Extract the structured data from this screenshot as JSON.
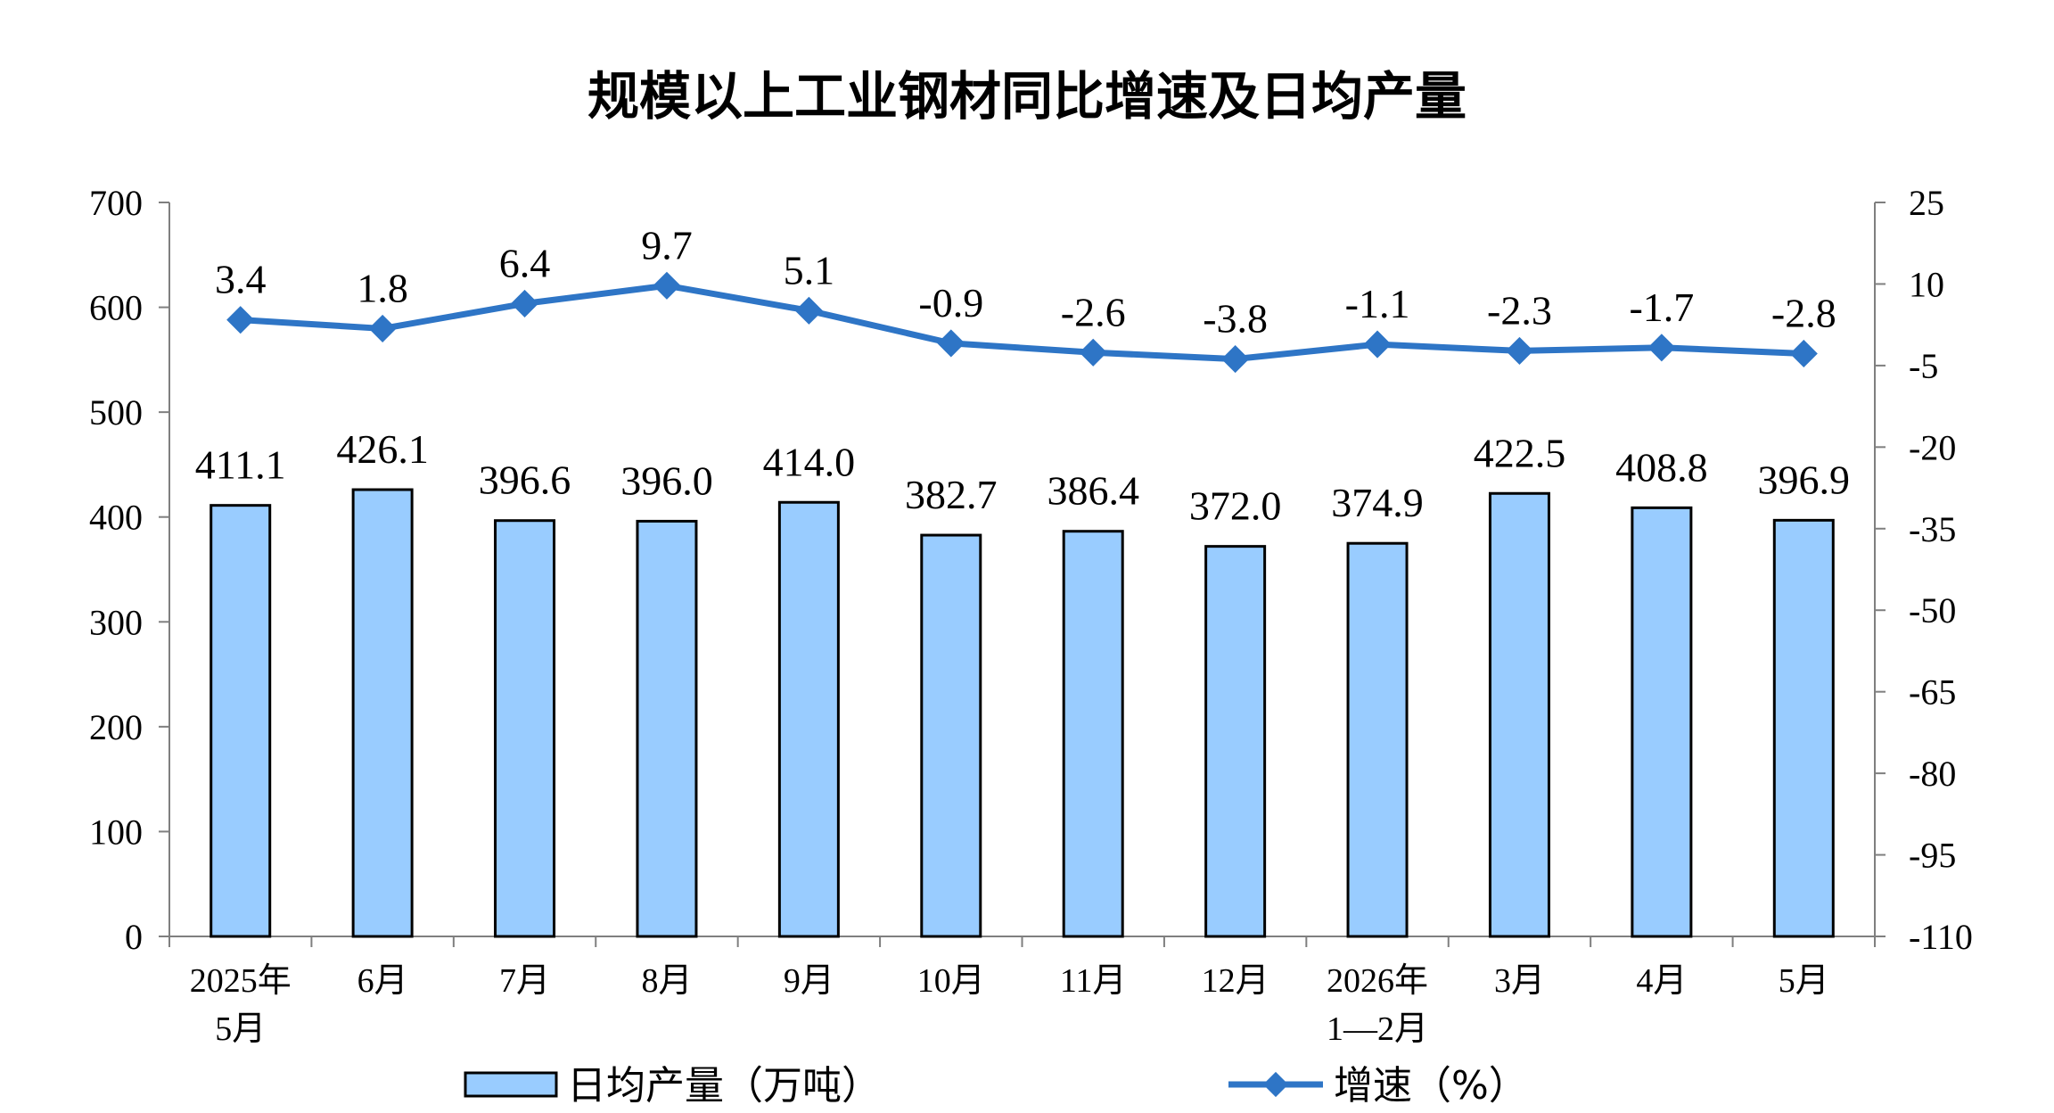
{
  "chart_data": {
    "type": "bar",
    "title": "规模以上工业钢材同比增速及日均产量",
    "categories": [
      [
        "2025年",
        "5月"
      ],
      [
        "6月"
      ],
      [
        "7月"
      ],
      [
        "8月"
      ],
      [
        "9月"
      ],
      [
        "10月"
      ],
      [
        "11月"
      ],
      [
        "12月"
      ],
      [
        "2026年",
        "1—2月"
      ],
      [
        "3月"
      ],
      [
        "4月"
      ],
      [
        "5月"
      ]
    ],
    "series": [
      {
        "name": "日均产量（万吨）",
        "type": "bar",
        "axis": "left",
        "values": [
          411.1,
          426.1,
          396.6,
          396.0,
          414.0,
          382.7,
          386.4,
          372.0,
          374.9,
          422.5,
          408.8,
          396.9
        ],
        "labels": [
          "411.1",
          "426.1",
          "396.6",
          "396.0",
          "414.0",
          "382.7",
          "386.4",
          "372.0",
          "374.9",
          "422.5",
          "408.8",
          "396.9"
        ],
        "color": "#99ccff"
      },
      {
        "name": "增速（%）",
        "type": "line",
        "axis": "right",
        "values": [
          3.4,
          1.8,
          6.4,
          9.7,
          5.1,
          -0.9,
          -2.6,
          -3.8,
          -1.1,
          -2.3,
          -1.7,
          -2.8
        ],
        "labels": [
          "3.4",
          "1.8",
          "6.4",
          "9.7",
          "5.1",
          "-0.9",
          "-2.6",
          "-3.8",
          "-1.1",
          "-2.3",
          "-1.7",
          "-2.8"
        ],
        "color": "#2e75c6"
      }
    ],
    "y_left": {
      "min": 0,
      "max": 700,
      "ticks": [
        "0",
        "100",
        "200",
        "300",
        "400",
        "500",
        "600",
        "700"
      ]
    },
    "y_right": {
      "min": -110,
      "max": 25,
      "ticks": [
        "-110",
        "-95",
        "-80",
        "-65",
        "-50",
        "-35",
        "-20",
        "-5",
        "10",
        "25"
      ]
    },
    "grid": false,
    "legend_position": "bottom"
  }
}
